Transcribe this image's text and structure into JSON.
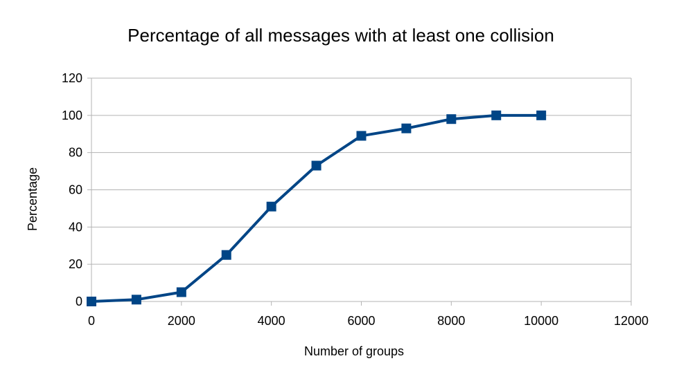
{
  "chart_data": {
    "type": "line",
    "title": "Percentage of all messages with at least one collision",
    "xlabel": "Number of groups",
    "ylabel": "Percentage",
    "xlim": [
      0,
      12000
    ],
    "ylim": [
      0,
      120
    ],
    "xticks": [
      0,
      2000,
      4000,
      6000,
      8000,
      10000,
      12000
    ],
    "yticks": [
      0,
      20,
      40,
      60,
      80,
      100,
      120
    ],
    "grid": true,
    "legend": "none",
    "series": [
      {
        "color": "#004586",
        "marker": "square",
        "x": [
          0,
          1000,
          2000,
          3000,
          4000,
          5000,
          6000,
          7000,
          8000,
          9000,
          10000
        ],
        "y": [
          0,
          1,
          5,
          25,
          51,
          73,
          89,
          93,
          98,
          100,
          100
        ]
      }
    ]
  }
}
